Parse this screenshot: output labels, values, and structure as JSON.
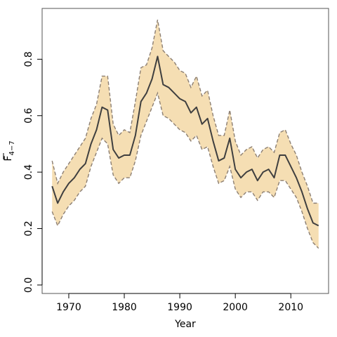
{
  "chart_data": {
    "type": "area",
    "title": "",
    "xlabel": "Year",
    "ylabel_main": "F",
    "ylabel_sub": "4−7",
    "xlim": [
      1965.2,
      2016.8
    ],
    "ylim": [
      -0.03,
      0.98
    ],
    "x_ticks": [
      1970,
      1980,
      1990,
      2000,
      2010
    ],
    "y_ticks": [
      0.0,
      0.2,
      0.4,
      0.6,
      0.8
    ],
    "y_tick_labels": [
      "0.0",
      "0.2",
      "0.4",
      "0.6",
      "0.8"
    ],
    "grid": false,
    "legend": "none",
    "series": [
      {
        "role": "upper",
        "x": [
          1967,
          1968,
          1969,
          1970,
          1971,
          1972,
          1973,
          1974,
          1975,
          1976,
          1977,
          1978,
          1979,
          1980,
          1981,
          1982,
          1983,
          1984,
          1985,
          1986,
          1987,
          1988,
          1989,
          1990,
          1991,
          1992,
          1993,
          1994,
          1995,
          1996,
          1997,
          1998,
          1999,
          2000,
          2001,
          2002,
          2003,
          2004,
          2005,
          2006,
          2007,
          2008,
          2009,
          2010,
          2011,
          2012,
          2013,
          2014,
          2015
        ],
        "values": [
          0.44,
          0.36,
          0.4,
          0.43,
          0.46,
          0.49,
          0.52,
          0.59,
          0.64,
          0.74,
          0.74,
          0.57,
          0.53,
          0.55,
          0.54,
          0.65,
          0.77,
          0.78,
          0.84,
          0.94,
          0.83,
          0.81,
          0.79,
          0.76,
          0.75,
          0.7,
          0.74,
          0.67,
          0.69,
          0.6,
          0.53,
          0.53,
          0.62,
          0.51,
          0.46,
          0.48,
          0.49,
          0.45,
          0.48,
          0.49,
          0.47,
          0.54,
          0.55,
          0.5,
          0.46,
          0.4,
          0.35,
          0.29,
          0.29
        ]
      },
      {
        "role": "estimate",
        "x": [
          1967,
          1968,
          1969,
          1970,
          1971,
          1972,
          1973,
          1974,
          1975,
          1976,
          1977,
          1978,
          1979,
          1980,
          1981,
          1982,
          1983,
          1984,
          1985,
          1986,
          1987,
          1988,
          1989,
          1990,
          1991,
          1992,
          1993,
          1994,
          1995,
          1996,
          1997,
          1998,
          1999,
          2000,
          2001,
          2002,
          2003,
          2004,
          2005,
          2006,
          2007,
          2008,
          2009,
          2010,
          2011,
          2012,
          2013,
          2014,
          2015
        ],
        "values": [
          0.35,
          0.29,
          0.33,
          0.36,
          0.38,
          0.41,
          0.43,
          0.5,
          0.55,
          0.63,
          0.62,
          0.48,
          0.45,
          0.46,
          0.46,
          0.53,
          0.65,
          0.68,
          0.73,
          0.81,
          0.71,
          0.7,
          0.68,
          0.66,
          0.65,
          0.61,
          0.63,
          0.57,
          0.59,
          0.51,
          0.44,
          0.45,
          0.52,
          0.41,
          0.38,
          0.4,
          0.41,
          0.37,
          0.4,
          0.41,
          0.38,
          0.46,
          0.46,
          0.42,
          0.38,
          0.33,
          0.27,
          0.22,
          0.21
        ]
      },
      {
        "role": "lower",
        "x": [
          1967,
          1968,
          1969,
          1970,
          1971,
          1972,
          1973,
          1974,
          1975,
          1976,
          1977,
          1978,
          1979,
          1980,
          1981,
          1982,
          1983,
          1984,
          1985,
          1986,
          1987,
          1988,
          1989,
          1990,
          1991,
          1992,
          1993,
          1994,
          1995,
          1996,
          1997,
          1998,
          1999,
          2000,
          2001,
          2002,
          2003,
          2004,
          2005,
          2006,
          2007,
          2008,
          2009,
          2010,
          2011,
          2012,
          2013,
          2014,
          2015
        ],
        "values": [
          0.26,
          0.21,
          0.25,
          0.28,
          0.3,
          0.33,
          0.35,
          0.42,
          0.47,
          0.52,
          0.5,
          0.39,
          0.36,
          0.38,
          0.38,
          0.44,
          0.53,
          0.58,
          0.63,
          0.68,
          0.6,
          0.59,
          0.57,
          0.55,
          0.54,
          0.51,
          0.53,
          0.48,
          0.49,
          0.42,
          0.36,
          0.37,
          0.42,
          0.34,
          0.31,
          0.33,
          0.33,
          0.3,
          0.33,
          0.33,
          0.31,
          0.37,
          0.37,
          0.34,
          0.31,
          0.26,
          0.2,
          0.15,
          0.13
        ]
      }
    ],
    "colors": {
      "band_fill": "#f5deb3",
      "band_edge": "#8c7f73",
      "line": "#3f3f3f",
      "axis": "#000000",
      "frame": "#555555"
    }
  }
}
